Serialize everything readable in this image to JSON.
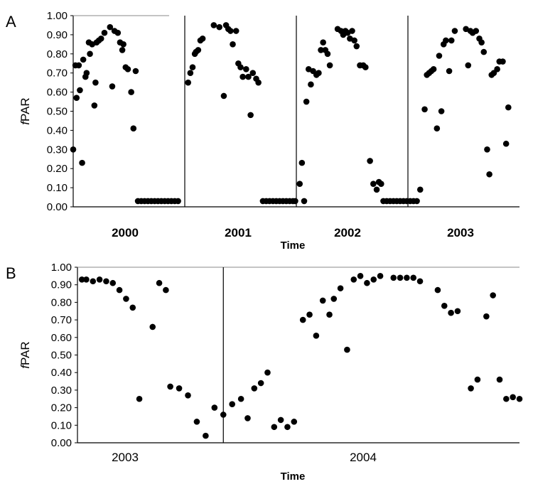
{
  "chart_data": [
    {
      "panel_label": "A",
      "type": "scatter",
      "ylabel": "fPAR",
      "xlabel": "Time",
      "ylim": [
        0,
        1
      ],
      "y_ticks": [
        "0.00",
        "0.10",
        "0.20",
        "0.30",
        "0.40",
        "0.50",
        "0.60",
        "0.70",
        "0.80",
        "0.90",
        "1.00"
      ],
      "x_categories": [
        "2000",
        "2001",
        "2002",
        "2003"
      ],
      "xlim": [
        2000,
        2004
      ],
      "year_dividers": [
        2001,
        2002,
        2003
      ],
      "points": [
        [
          2000.0,
          0.3
        ],
        [
          2000.02,
          0.74
        ],
        [
          2000.03,
          0.57
        ],
        [
          2000.05,
          0.74
        ],
        [
          2000.06,
          0.61
        ],
        [
          2000.08,
          0.23
        ],
        [
          2000.09,
          0.77
        ],
        [
          2000.11,
          0.68
        ],
        [
          2000.12,
          0.7
        ],
        [
          2000.14,
          0.86
        ],
        [
          2000.15,
          0.8
        ],
        [
          2000.17,
          0.85
        ],
        [
          2000.19,
          0.53
        ],
        [
          2000.2,
          0.65
        ],
        [
          2000.21,
          0.86
        ],
        [
          2000.23,
          0.87
        ],
        [
          2000.25,
          0.88
        ],
        [
          2000.28,
          0.91
        ],
        [
          2000.33,
          0.94
        ],
        [
          2000.35,
          0.63
        ],
        [
          2000.37,
          0.92
        ],
        [
          2000.4,
          0.91
        ],
        [
          2000.42,
          0.86
        ],
        [
          2000.44,
          0.82
        ],
        [
          2000.45,
          0.85
        ],
        [
          2000.47,
          0.73
        ],
        [
          2000.49,
          0.72
        ],
        [
          2000.52,
          0.6
        ],
        [
          2000.54,
          0.41
        ],
        [
          2000.56,
          0.71
        ],
        [
          2000.58,
          0.03
        ],
        [
          2000.61,
          0.03
        ],
        [
          2000.64,
          0.03
        ],
        [
          2000.67,
          0.03
        ],
        [
          2000.7,
          0.03
        ],
        [
          2000.73,
          0.03
        ],
        [
          2000.76,
          0.03
        ],
        [
          2000.79,
          0.03
        ],
        [
          2000.82,
          0.03
        ],
        [
          2000.85,
          0.03
        ],
        [
          2000.88,
          0.03
        ],
        [
          2000.91,
          0.03
        ],
        [
          2000.94,
          0.03
        ],
        [
          2001.03,
          0.65
        ],
        [
          2001.05,
          0.7
        ],
        [
          2001.07,
          0.73
        ],
        [
          2001.09,
          0.8
        ],
        [
          2001.1,
          0.81
        ],
        [
          2001.12,
          0.82
        ],
        [
          2001.14,
          0.87
        ],
        [
          2001.16,
          0.88
        ],
        [
          2001.26,
          0.95
        ],
        [
          2001.31,
          0.94
        ],
        [
          2001.35,
          0.58
        ],
        [
          2001.37,
          0.95
        ],
        [
          2001.39,
          0.93
        ],
        [
          2001.41,
          0.92
        ],
        [
          2001.43,
          0.85
        ],
        [
          2001.46,
          0.92
        ],
        [
          2001.48,
          0.75
        ],
        [
          2001.5,
          0.73
        ],
        [
          2001.52,
          0.68
        ],
        [
          2001.55,
          0.72
        ],
        [
          2001.57,
          0.68
        ],
        [
          2001.59,
          0.48
        ],
        [
          2001.61,
          0.7
        ],
        [
          2001.64,
          0.67
        ],
        [
          2001.66,
          0.65
        ],
        [
          2001.7,
          0.03
        ],
        [
          2001.73,
          0.03
        ],
        [
          2001.76,
          0.03
        ],
        [
          2001.79,
          0.03
        ],
        [
          2001.82,
          0.03
        ],
        [
          2001.85,
          0.03
        ],
        [
          2001.88,
          0.03
        ],
        [
          2001.91,
          0.03
        ],
        [
          2001.94,
          0.03
        ],
        [
          2001.97,
          0.03
        ],
        [
          2001.99,
          0.03
        ],
        [
          2002.03,
          0.12
        ],
        [
          2002.05,
          0.23
        ],
        [
          2002.07,
          0.03
        ],
        [
          2002.09,
          0.55
        ],
        [
          2002.11,
          0.72
        ],
        [
          2002.13,
          0.64
        ],
        [
          2002.15,
          0.71
        ],
        [
          2002.18,
          0.69
        ],
        [
          2002.2,
          0.7
        ],
        [
          2002.22,
          0.82
        ],
        [
          2002.24,
          0.86
        ],
        [
          2002.26,
          0.82
        ],
        [
          2002.28,
          0.8
        ],
        [
          2002.3,
          0.74
        ],
        [
          2002.37,
          0.93
        ],
        [
          2002.4,
          0.92
        ],
        [
          2002.42,
          0.9
        ],
        [
          2002.44,
          0.92
        ],
        [
          2002.46,
          0.91
        ],
        [
          2002.48,
          0.88
        ],
        [
          2002.5,
          0.92
        ],
        [
          2002.52,
          0.87
        ],
        [
          2002.54,
          0.84
        ],
        [
          2002.57,
          0.74
        ],
        [
          2002.6,
          0.74
        ],
        [
          2002.62,
          0.73
        ],
        [
          2002.66,
          0.24
        ],
        [
          2002.69,
          0.12
        ],
        [
          2002.72,
          0.09
        ],
        [
          2002.74,
          0.13
        ],
        [
          2002.76,
          0.12
        ],
        [
          2002.78,
          0.03
        ],
        [
          2002.81,
          0.03
        ],
        [
          2002.84,
          0.03
        ],
        [
          2002.87,
          0.03
        ],
        [
          2002.9,
          0.03
        ],
        [
          2002.93,
          0.03
        ],
        [
          2002.96,
          0.03
        ],
        [
          2002.99,
          0.03
        ],
        [
          2003.02,
          0.03
        ],
        [
          2003.05,
          0.03
        ],
        [
          2003.08,
          0.03
        ],
        [
          2003.11,
          0.09
        ],
        [
          2003.15,
          0.51
        ],
        [
          2003.17,
          0.69
        ],
        [
          2003.19,
          0.7
        ],
        [
          2003.21,
          0.71
        ],
        [
          2003.23,
          0.72
        ],
        [
          2003.26,
          0.41
        ],
        [
          2003.28,
          0.79
        ],
        [
          2003.3,
          0.5
        ],
        [
          2003.32,
          0.85
        ],
        [
          2003.34,
          0.87
        ],
        [
          2003.37,
          0.71
        ],
        [
          2003.39,
          0.87
        ],
        [
          2003.42,
          0.92
        ],
        [
          2003.52,
          0.93
        ],
        [
          2003.54,
          0.74
        ],
        [
          2003.56,
          0.92
        ],
        [
          2003.58,
          0.91
        ],
        [
          2003.61,
          0.92
        ],
        [
          2003.64,
          0.88
        ],
        [
          2003.66,
          0.86
        ],
        [
          2003.68,
          0.81
        ],
        [
          2003.71,
          0.3
        ],
        [
          2003.73,
          0.17
        ],
        [
          2003.75,
          0.69
        ],
        [
          2003.77,
          0.7
        ],
        [
          2003.8,
          0.72
        ],
        [
          2003.82,
          0.76
        ],
        [
          2003.85,
          0.76
        ],
        [
          2003.88,
          0.33
        ],
        [
          2003.9,
          0.52
        ]
      ]
    },
    {
      "panel_label": "B",
      "type": "scatter",
      "ylabel": "fPAR",
      "xlabel": "Time",
      "ylim": [
        0,
        1
      ],
      "y_ticks": [
        "0.00",
        "0.10",
        "0.20",
        "0.30",
        "0.40",
        "0.50",
        "0.60",
        "0.70",
        "0.80",
        "0.90",
        "1.00"
      ],
      "x_categories": [
        "2003",
        "2004"
      ],
      "xlim": [
        2003,
        2005
      ],
      "year_dividers": [
        2003.66
      ],
      "points": [
        [
          2003.02,
          0.93
        ],
        [
          2003.04,
          0.93
        ],
        [
          2003.07,
          0.92
        ],
        [
          2003.1,
          0.93
        ],
        [
          2003.13,
          0.92
        ],
        [
          2003.16,
          0.91
        ],
        [
          2003.19,
          0.87
        ],
        [
          2003.22,
          0.82
        ],
        [
          2003.25,
          0.77
        ],
        [
          2003.28,
          0.25
        ],
        [
          2003.34,
          0.66
        ],
        [
          2003.37,
          0.91
        ],
        [
          2003.4,
          0.87
        ],
        [
          2003.42,
          0.32
        ],
        [
          2003.46,
          0.31
        ],
        [
          2003.5,
          0.27
        ],
        [
          2003.54,
          0.12
        ],
        [
          2003.58,
          0.04
        ],
        [
          2003.62,
          0.2
        ],
        [
          2003.66,
          0.16
        ],
        [
          2003.7,
          0.22
        ],
        [
          2003.74,
          0.25
        ],
        [
          2003.77,
          0.14
        ],
        [
          2003.8,
          0.31
        ],
        [
          2003.83,
          0.34
        ],
        [
          2003.86,
          0.4
        ],
        [
          2003.89,
          0.09
        ],
        [
          2003.92,
          0.13
        ],
        [
          2003.95,
          0.09
        ],
        [
          2003.98,
          0.12
        ],
        [
          2004.02,
          0.7
        ],
        [
          2004.05,
          0.73
        ],
        [
          2004.08,
          0.61
        ],
        [
          2004.11,
          0.81
        ],
        [
          2004.14,
          0.73
        ],
        [
          2004.16,
          0.82
        ],
        [
          2004.19,
          0.88
        ],
        [
          2004.22,
          0.53
        ],
        [
          2004.25,
          0.93
        ],
        [
          2004.28,
          0.95
        ],
        [
          2004.31,
          0.91
        ],
        [
          2004.34,
          0.93
        ],
        [
          2004.37,
          0.95
        ],
        [
          2004.43,
          0.94
        ],
        [
          2004.46,
          0.94
        ],
        [
          2004.49,
          0.94
        ],
        [
          2004.52,
          0.94
        ],
        [
          2004.55,
          0.92
        ],
        [
          2004.63,
          0.87
        ],
        [
          2004.66,
          0.78
        ],
        [
          2004.69,
          0.74
        ],
        [
          2004.72,
          0.75
        ],
        [
          2004.78,
          0.31
        ],
        [
          2004.81,
          0.36
        ],
        [
          2004.85,
          0.72
        ],
        [
          2004.88,
          0.84
        ],
        [
          2004.91,
          0.36
        ],
        [
          2004.94,
          0.25
        ],
        [
          2004.97,
          0.26
        ],
        [
          2005.0,
          0.25
        ]
      ]
    }
  ]
}
